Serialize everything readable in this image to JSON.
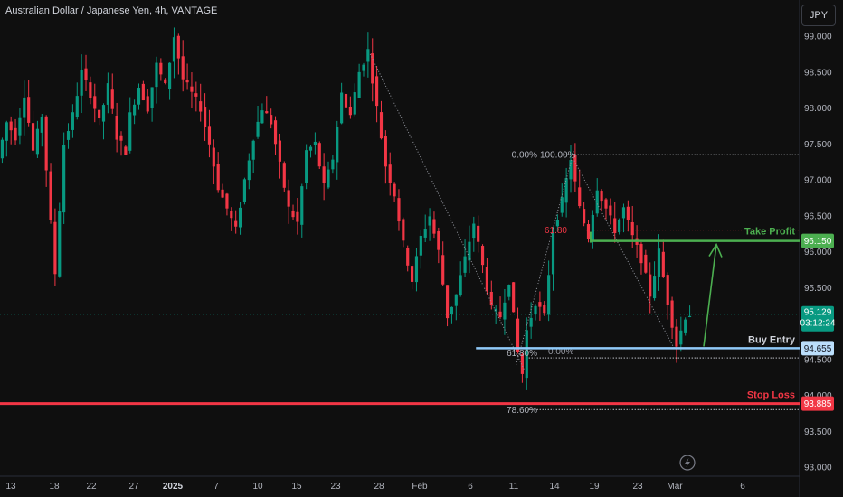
{
  "header": {
    "title": "Australian Dollar / Japanese Yen, 4h, VANTAGE",
    "currency_button": "JPY"
  },
  "chart_data": {
    "type": "candlestick",
    "symbol": "Australian Dollar / Japanese Yen",
    "timeframe": "4h",
    "source": "VANTAGE",
    "ylim": [
      93.0,
      99.0
    ],
    "y_ticks": [
      "93.000",
      "93.500",
      "94.000",
      "94.500",
      "95.000",
      "95.500",
      "96.000",
      "96.500",
      "97.000",
      "97.500",
      "98.000",
      "98.500",
      "99.000"
    ],
    "x_ticks": [
      "13",
      "18",
      "22",
      "27",
      "2025",
      "7",
      "10",
      "15",
      "23",
      "28",
      "Feb",
      "6",
      "11",
      "14",
      "19",
      "23",
      "Mar",
      "6"
    ],
    "x_tick_bold": "2025",
    "current_price": {
      "price": 95.129,
      "label": "95.129",
      "countdown": "03:12:24",
      "color": "#089981"
    },
    "price_path": [
      [
        0,
        97.3
      ],
      [
        2,
        97.8
      ],
      [
        4,
        97.6
      ],
      [
        6,
        98.2
      ],
      [
        8,
        97.4
      ],
      [
        10,
        97.9
      ],
      [
        12,
        96.4
      ],
      [
        13,
        95.7
      ],
      [
        15,
        97.5
      ],
      [
        17,
        97.9
      ],
      [
        19,
        98.5
      ],
      [
        21,
        98.2
      ],
      [
        23,
        97.8
      ],
      [
        25,
        98.3
      ],
      [
        27,
        97.6
      ],
      [
        29,
        97.4
      ],
      [
        30,
        97.9
      ],
      [
        32,
        98.3
      ],
      [
        34,
        98.0
      ],
      [
        36,
        98.6
      ],
      [
        38,
        98.3
      ],
      [
        40,
        99.0
      ],
      [
        42,
        98.4
      ],
      [
        44,
        98.2
      ],
      [
        46,
        98.0
      ],
      [
        48,
        97.5
      ],
      [
        50,
        96.9
      ],
      [
        52,
        96.6
      ],
      [
        54,
        96.3
      ],
      [
        56,
        97.0
      ],
      [
        58,
        97.6
      ],
      [
        60,
        98.0
      ],
      [
        62,
        97.8
      ],
      [
        64,
        97.2
      ],
      [
        66,
        96.6
      ],
      [
        68,
        96.4
      ],
      [
        70,
        97.4
      ],
      [
        72,
        97.5
      ],
      [
        74,
        96.9
      ],
      [
        76,
        97.3
      ],
      [
        78,
        98.2
      ],
      [
        80,
        97.9
      ],
      [
        82,
        98.5
      ],
      [
        84,
        98.8
      ],
      [
        86,
        98.0
      ],
      [
        88,
        97.2
      ],
      [
        90,
        96.8
      ],
      [
        92,
        96.1
      ],
      [
        94,
        95.6
      ],
      [
        96,
        96.2
      ],
      [
        98,
        96.5
      ],
      [
        100,
        96.0
      ],
      [
        102,
        95.1
      ],
      [
        104,
        95.4
      ],
      [
        106,
        95.9
      ],
      [
        108,
        96.4
      ],
      [
        110,
        95.8
      ],
      [
        112,
        95.2
      ],
      [
        114,
        95.1
      ],
      [
        116,
        95.6
      ],
      [
        118,
        94.6
      ],
      [
        119,
        94.3
      ],
      [
        120,
        94.9
      ],
      [
        122,
        95.3
      ],
      [
        124,
        95.1
      ],
      [
        126,
        96.3
      ],
      [
        128,
        96.7
      ],
      [
        130,
        97.3
      ],
      [
        132,
        96.6
      ],
      [
        134,
        96.2
      ],
      [
        136,
        96.9
      ],
      [
        138,
        96.6
      ],
      [
        140,
        96.3
      ],
      [
        142,
        96.6
      ],
      [
        144,
        96.2
      ],
      [
        146,
        95.9
      ],
      [
        148,
        95.4
      ],
      [
        150,
        96.0
      ],
      [
        152,
        95.3
      ],
      [
        154,
        94.7
      ],
      [
        156,
        95.1
      ],
      [
        157,
        95.13
      ]
    ],
    "horizontal_levels": [
      {
        "price": 96.15,
        "label": "Take Profit",
        "tag": "96.150",
        "color": "#4caf50"
      },
      {
        "price": 94.655,
        "label": "Buy Entry",
        "tag": "94.655",
        "color": "#90caf9"
      },
      {
        "price": 93.885,
        "label": "Stop Loss",
        "tag": "93.885",
        "color": "#f23645"
      }
    ],
    "fib_labels": [
      "0.00%",
      "100.00%",
      "61.80",
      "61.80%",
      "0.00%",
      "78.60%"
    ],
    "fib_levels": [
      {
        "label": "0.00%",
        "price": 97.35
      },
      {
        "label": "100.00%",
        "price": 97.35
      },
      {
        "label": "61.80",
        "price": 96.3
      },
      {
        "label": "61.80%",
        "price": 94.6
      },
      {
        "label": "0.00%",
        "price": 94.6
      },
      {
        "label": "78.60%",
        "price": 93.8
      }
    ]
  }
}
